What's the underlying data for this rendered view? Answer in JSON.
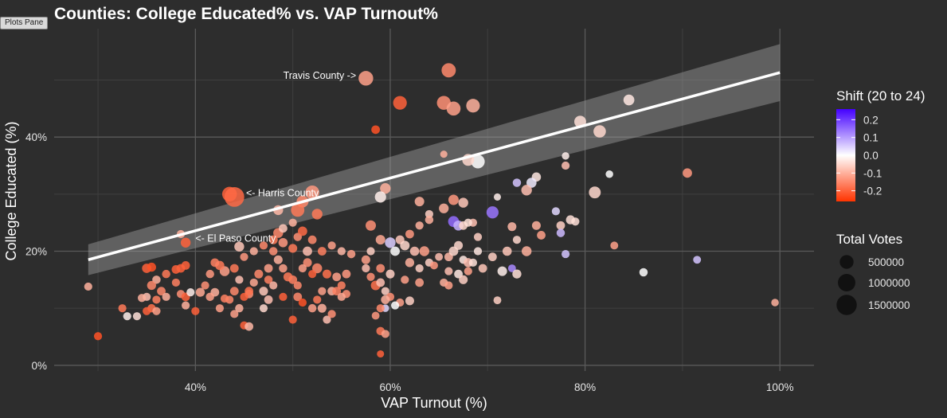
{
  "pane_tab": {
    "label": "Plots Pane"
  },
  "colors": {
    "background": "#2d2d2d",
    "grid_major": "#5a5a5a",
    "grid_minor": "#3f3f3f",
    "text": "#ffffff",
    "axis_text": "#e6e6e6",
    "trend_line": "#ffffff",
    "confidence_band": "#a0a0a0",
    "scale_high": "#4400ff",
    "scale_mid": "#ffffff",
    "scale_low": "#ff3300"
  },
  "chart_data": {
    "type": "scatter",
    "title": "Counties: College Educated% vs. VAP Turnout%",
    "xlabel": "VAP Turnout (%)",
    "ylabel": "College Educated (%)",
    "xlim": [
      0.255,
      1.035
    ],
    "ylim": [
      -0.01,
      0.59
    ],
    "x_ticks": [
      {
        "value": 0.4,
        "label": "40%"
      },
      {
        "value": 0.6,
        "label": "60%"
      },
      {
        "value": 0.8,
        "label": "80%"
      },
      {
        "value": 1.0,
        "label": "100%"
      }
    ],
    "y_ticks": [
      {
        "value": 0.0,
        "label": "0%"
      },
      {
        "value": 0.2,
        "label": "20%"
      },
      {
        "value": 0.4,
        "label": "40%"
      }
    ],
    "grid": true,
    "trend": {
      "x": [
        0.29,
        1.0
      ],
      "y": [
        0.185,
        0.513
      ],
      "band_halfwidth": [
        0.027,
        0.05
      ]
    },
    "color_legend": {
      "title": "Shift (20 to 24)",
      "min": -0.26,
      "max": 0.26,
      "ticks": [
        {
          "value": 0.2,
          "label": "0.2"
        },
        {
          "value": 0.1,
          "label": "0.1"
        },
        {
          "value": 0.0,
          "label": "0.0"
        },
        {
          "value": -0.1,
          "label": "-0.1"
        },
        {
          "value": -0.2,
          "label": "-0.2"
        }
      ]
    },
    "size_legend": {
      "title": "Total Votes",
      "entries": [
        {
          "value": 500000,
          "label": "500000"
        },
        {
          "value": 1000000,
          "label": "1000000"
        },
        {
          "value": 1500000,
          "label": "1500000"
        }
      ]
    },
    "annotations": [
      {
        "text": "Travis County ->",
        "x": 0.565,
        "y": 0.508,
        "anchor": "end"
      },
      {
        "text": "<- Harris County",
        "x": 0.452,
        "y": 0.302,
        "anchor": "start"
      },
      {
        "text": "<- El Paso County",
        "x": 0.4,
        "y": 0.222,
        "anchor": "start"
      }
    ],
    "points": [
      [
        0.575,
        0.503,
        -0.12,
        600000
      ],
      [
        0.66,
        0.517,
        -0.15,
        550000
      ],
      [
        0.61,
        0.46,
        -0.2,
        480000
      ],
      [
        0.655,
        0.46,
        -0.14,
        500000
      ],
      [
        0.665,
        0.45,
        -0.12,
        520000
      ],
      [
        0.685,
        0.455,
        -0.1,
        480000
      ],
      [
        0.585,
        0.413,
        -0.22,
        80000
      ],
      [
        0.845,
        0.465,
        -0.03,
        220000
      ],
      [
        0.795,
        0.427,
        -0.04,
        300000
      ],
      [
        0.815,
        0.41,
        -0.05,
        350000
      ],
      [
        0.69,
        0.357,
        0.0,
        480000
      ],
      [
        0.68,
        0.36,
        -0.05,
        300000
      ],
      [
        0.78,
        0.367,
        -0.02,
        40000
      ],
      [
        0.78,
        0.35,
        -0.08,
        60000
      ],
      [
        0.655,
        0.37,
        -0.1,
        30000
      ],
      [
        0.905,
        0.337,
        -0.13,
        120000
      ],
      [
        0.825,
        0.335,
        0.0,
        40000
      ],
      [
        0.435,
        0.3,
        -0.2,
        600000
      ],
      [
        0.44,
        0.295,
        -0.19,
        1400000
      ],
      [
        0.52,
        0.303,
        -0.13,
        500000
      ],
      [
        0.51,
        0.287,
        -0.15,
        300000
      ],
      [
        0.505,
        0.272,
        -0.17,
        450000
      ],
      [
        0.485,
        0.272,
        -0.09,
        150000
      ],
      [
        0.525,
        0.265,
        -0.17,
        200000
      ],
      [
        0.595,
        0.31,
        -0.1,
        200000
      ],
      [
        0.59,
        0.295,
        -0.02,
        250000
      ],
      [
        0.63,
        0.287,
        -0.1,
        130000
      ],
      [
        0.665,
        0.29,
        -0.13,
        180000
      ],
      [
        0.675,
        0.285,
        -0.07,
        150000
      ],
      [
        0.75,
        0.33,
        -0.03,
        110000
      ],
      [
        0.745,
        0.32,
        0.02,
        160000
      ],
      [
        0.73,
        0.32,
        0.06,
        70000
      ],
      [
        0.74,
        0.307,
        -0.08,
        200000
      ],
      [
        0.81,
        0.303,
        -0.05,
        300000
      ],
      [
        0.71,
        0.295,
        -0.02,
        30000
      ],
      [
        0.705,
        0.268,
        0.14,
        320000
      ],
      [
        0.665,
        0.252,
        0.15,
        220000
      ],
      [
        0.67,
        0.245,
        0.08,
        160000
      ],
      [
        0.64,
        0.265,
        -0.06,
        60000
      ],
      [
        0.655,
        0.275,
        -0.1,
        140000
      ],
      [
        0.75,
        0.245,
        -0.1,
        90000
      ],
      [
        0.755,
        0.228,
        -0.12,
        80000
      ],
      [
        0.77,
        0.27,
        0.04,
        60000
      ],
      [
        0.775,
        0.245,
        -0.06,
        80000
      ],
      [
        0.785,
        0.255,
        -0.04,
        100000
      ],
      [
        0.79,
        0.252,
        -0.04,
        60000
      ],
      [
        0.775,
        0.232,
        0.07,
        70000
      ],
      [
        0.725,
        0.243,
        -0.09,
        90000
      ],
      [
        0.73,
        0.22,
        -0.05,
        60000
      ],
      [
        0.72,
        0.2,
        -0.07,
        110000
      ],
      [
        0.74,
        0.2,
        -0.1,
        150000
      ],
      [
        0.705,
        0.19,
        -0.06,
        80000
      ],
      [
        0.78,
        0.195,
        0.06,
        60000
      ],
      [
        0.83,
        0.21,
        -0.12,
        50000
      ],
      [
        0.86,
        0.163,
        0.0,
        70000
      ],
      [
        0.915,
        0.185,
        0.06,
        50000
      ],
      [
        0.995,
        0.11,
        -0.1,
        40000
      ],
      [
        0.71,
        0.114,
        -0.06,
        50000
      ],
      [
        0.715,
        0.165,
        -0.02,
        130000
      ],
      [
        0.725,
        0.17,
        0.12,
        50000
      ],
      [
        0.73,
        0.16,
        -0.04,
        100000
      ],
      [
        0.69,
        0.225,
        -0.06,
        60000
      ],
      [
        0.685,
        0.25,
        -0.08,
        60000
      ],
      [
        0.675,
        0.245,
        -0.05,
        80000
      ],
      [
        0.68,
        0.25,
        -0.04,
        60000
      ],
      [
        0.63,
        0.245,
        -0.1,
        60000
      ],
      [
        0.64,
        0.255,
        -0.1,
        70000
      ],
      [
        0.62,
        0.23,
        -0.13,
        80000
      ],
      [
        0.61,
        0.22,
        -0.07,
        90000
      ],
      [
        0.6,
        0.215,
        0.05,
        200000
      ],
      [
        0.59,
        0.22,
        -0.11,
        130000
      ],
      [
        0.58,
        0.245,
        -0.14,
        180000
      ],
      [
        0.605,
        0.2,
        0.0,
        120000
      ],
      [
        0.615,
        0.21,
        -0.05,
        130000
      ],
      [
        0.625,
        0.2,
        -0.08,
        110000
      ],
      [
        0.635,
        0.2,
        -0.12,
        150000
      ],
      [
        0.64,
        0.18,
        -0.06,
        60000
      ],
      [
        0.645,
        0.175,
        -0.13,
        50000
      ],
      [
        0.65,
        0.19,
        -0.08,
        50000
      ],
      [
        0.66,
        0.19,
        -0.09,
        80000
      ],
      [
        0.665,
        0.2,
        -0.05,
        120000
      ],
      [
        0.67,
        0.21,
        -0.05,
        90000
      ],
      [
        0.675,
        0.185,
        -0.03,
        60000
      ],
      [
        0.68,
        0.18,
        -0.08,
        100000
      ],
      [
        0.685,
        0.18,
        -0.04,
        60000
      ],
      [
        0.66,
        0.165,
        -0.08,
        60000
      ],
      [
        0.67,
        0.16,
        -0.03,
        80000
      ],
      [
        0.655,
        0.145,
        -0.1,
        60000
      ],
      [
        0.66,
        0.14,
        -0.12,
        60000
      ],
      [
        0.675,
        0.15,
        -0.06,
        90000
      ],
      [
        0.68,
        0.165,
        -0.12,
        60000
      ],
      [
        0.695,
        0.17,
        -0.07,
        80000
      ],
      [
        0.69,
        0.2,
        -0.03,
        60000
      ],
      [
        0.62,
        0.18,
        -0.1,
        100000
      ],
      [
        0.63,
        0.17,
        -0.06,
        60000
      ],
      [
        0.63,
        0.145,
        -0.12,
        80000
      ],
      [
        0.615,
        0.15,
        -0.12,
        60000
      ],
      [
        0.6,
        0.16,
        -0.06,
        90000
      ],
      [
        0.59,
        0.17,
        -0.14,
        80000
      ],
      [
        0.58,
        0.2,
        -0.06,
        60000
      ],
      [
        0.575,
        0.185,
        -0.12,
        90000
      ],
      [
        0.575,
        0.17,
        -0.08,
        60000
      ],
      [
        0.58,
        0.155,
        -0.14,
        60000
      ],
      [
        0.585,
        0.14,
        -0.18,
        130000
      ],
      [
        0.59,
        0.145,
        -0.08,
        80000
      ],
      [
        0.595,
        0.13,
        -0.06,
        60000
      ],
      [
        0.6,
        0.12,
        -0.14,
        60000
      ],
      [
        0.595,
        0.115,
        -0.1,
        90000
      ],
      [
        0.61,
        0.11,
        -0.12,
        60000
      ],
      [
        0.62,
        0.113,
        -0.06,
        90000
      ],
      [
        0.605,
        0.105,
        0.0,
        60000
      ],
      [
        0.595,
        0.1,
        0.04,
        40000
      ],
      [
        0.59,
        0.1,
        -0.15,
        60000
      ],
      [
        0.585,
        0.087,
        -0.13,
        50000
      ],
      [
        0.59,
        0.06,
        -0.17,
        70000
      ],
      [
        0.595,
        0.055,
        -0.12,
        60000
      ],
      [
        0.59,
        0.02,
        -0.2,
        30000
      ],
      [
        0.555,
        0.16,
        -0.13,
        80000
      ],
      [
        0.56,
        0.195,
        -0.12,
        70000
      ],
      [
        0.55,
        0.2,
        -0.09,
        60000
      ],
      [
        0.54,
        0.21,
        -0.12,
        60000
      ],
      [
        0.53,
        0.2,
        -0.16,
        80000
      ],
      [
        0.525,
        0.17,
        -0.15,
        150000
      ],
      [
        0.535,
        0.16,
        -0.18,
        90000
      ],
      [
        0.545,
        0.155,
        -0.12,
        80000
      ],
      [
        0.55,
        0.14,
        -0.16,
        60000
      ],
      [
        0.555,
        0.125,
        -0.14,
        60000
      ],
      [
        0.54,
        0.13,
        -0.1,
        80000
      ],
      [
        0.53,
        0.13,
        -0.12,
        60000
      ],
      [
        0.52,
        0.16,
        -0.2,
        60000
      ],
      [
        0.515,
        0.18,
        -0.14,
        90000
      ],
      [
        0.51,
        0.17,
        -0.12,
        60000
      ],
      [
        0.505,
        0.14,
        -0.15,
        60000
      ],
      [
        0.5,
        0.15,
        -0.16,
        80000
      ],
      [
        0.495,
        0.155,
        -0.17,
        100000
      ],
      [
        0.49,
        0.17,
        -0.12,
        70000
      ],
      [
        0.485,
        0.185,
        -0.1,
        90000
      ],
      [
        0.48,
        0.2,
        -0.14,
        70000
      ],
      [
        0.475,
        0.17,
        -0.12,
        80000
      ],
      [
        0.47,
        0.21,
        -0.15,
        60000
      ],
      [
        0.48,
        0.22,
        -0.17,
        90000
      ],
      [
        0.485,
        0.232,
        -0.15,
        150000
      ],
      [
        0.49,
        0.215,
        -0.13,
        110000
      ],
      [
        0.5,
        0.205,
        -0.17,
        90000
      ],
      [
        0.505,
        0.225,
        -0.14,
        70000
      ],
      [
        0.51,
        0.235,
        -0.19,
        120000
      ],
      [
        0.49,
        0.24,
        -0.07,
        80000
      ],
      [
        0.5,
        0.25,
        -0.1,
        60000
      ],
      [
        0.515,
        0.2,
        -0.08,
        120000
      ],
      [
        0.52,
        0.22,
        -0.15,
        80000
      ],
      [
        0.47,
        0.13,
        -0.07,
        90000
      ],
      [
        0.475,
        0.15,
        -0.16,
        70000
      ],
      [
        0.48,
        0.14,
        -0.09,
        60000
      ],
      [
        0.47,
        0.1,
        -0.05,
        60000
      ],
      [
        0.475,
        0.115,
        -0.08,
        80000
      ],
      [
        0.49,
        0.12,
        -0.2,
        60000
      ],
      [
        0.5,
        0.08,
        -0.2,
        60000
      ],
      [
        0.505,
        0.12,
        -0.15,
        80000
      ],
      [
        0.51,
        0.11,
        -0.22,
        60000
      ],
      [
        0.52,
        0.1,
        -0.12,
        70000
      ],
      [
        0.525,
        0.115,
        -0.17,
        60000
      ],
      [
        0.53,
        0.1,
        -0.1,
        90000
      ],
      [
        0.535,
        0.08,
        -0.08,
        60000
      ],
      [
        0.54,
        0.09,
        -0.14,
        60000
      ],
      [
        0.545,
        0.13,
        -0.16,
        80000
      ],
      [
        0.55,
        0.12,
        -0.11,
        60000
      ],
      [
        0.465,
        0.16,
        -0.15,
        90000
      ],
      [
        0.46,
        0.145,
        -0.11,
        60000
      ],
      [
        0.455,
        0.125,
        -0.14,
        80000
      ],
      [
        0.45,
        0.12,
        -0.2,
        60000
      ],
      [
        0.455,
        0.13,
        -0.18,
        80000
      ],
      [
        0.445,
        0.15,
        -0.08,
        60000
      ],
      [
        0.44,
        0.13,
        -0.15,
        80000
      ],
      [
        0.435,
        0.115,
        -0.15,
        60000
      ],
      [
        0.44,
        0.09,
        -0.12,
        60000
      ],
      [
        0.445,
        0.1,
        -0.1,
        70000
      ],
      [
        0.45,
        0.07,
        -0.2,
        60000
      ],
      [
        0.455,
        0.068,
        -0.09,
        80000
      ],
      [
        0.46,
        0.2,
        -0.1,
        60000
      ],
      [
        0.445,
        0.208,
        -0.07,
        150000
      ],
      [
        0.45,
        0.19,
        -0.13,
        60000
      ],
      [
        0.44,
        0.17,
        -0.17,
        80000
      ],
      [
        0.43,
        0.165,
        -0.12,
        150000
      ],
      [
        0.425,
        0.175,
        -0.17,
        110000
      ],
      [
        0.42,
        0.18,
        -0.16,
        80000
      ],
      [
        0.415,
        0.16,
        -0.13,
        70000
      ],
      [
        0.41,
        0.14,
        -0.14,
        60000
      ],
      [
        0.42,
        0.128,
        -0.1,
        80000
      ],
      [
        0.415,
        0.12,
        -0.12,
        70000
      ],
      [
        0.405,
        0.128,
        -0.11,
        100000
      ],
      [
        0.43,
        0.117,
        -0.16,
        60000
      ],
      [
        0.425,
        0.1,
        -0.12,
        60000
      ],
      [
        0.4,
        0.095,
        -0.2,
        60000
      ],
      [
        0.39,
        0.105,
        -0.1,
        60000
      ],
      [
        0.385,
        0.125,
        -0.14,
        60000
      ],
      [
        0.39,
        0.12,
        -0.2,
        80000
      ],
      [
        0.395,
        0.128,
        -0.02,
        60000
      ],
      [
        0.38,
        0.145,
        -0.16,
        60000
      ],
      [
        0.37,
        0.16,
        -0.17,
        70000
      ],
      [
        0.36,
        0.15,
        -0.1,
        70000
      ],
      [
        0.355,
        0.14,
        -0.15,
        100000
      ],
      [
        0.35,
        0.17,
        -0.2,
        120000
      ],
      [
        0.355,
        0.172,
        -0.22,
        100000
      ],
      [
        0.365,
        0.13,
        -0.15,
        80000
      ],
      [
        0.37,
        0.12,
        -0.1,
        60000
      ],
      [
        0.36,
        0.115,
        -0.16,
        60000
      ],
      [
        0.35,
        0.12,
        -0.08,
        60000
      ],
      [
        0.345,
        0.118,
        -0.1,
        60000
      ],
      [
        0.355,
        0.1,
        -0.18,
        70000
      ],
      [
        0.35,
        0.095,
        -0.2,
        60000
      ],
      [
        0.36,
        0.095,
        -0.12,
        60000
      ],
      [
        0.34,
        0.086,
        -0.04,
        60000
      ],
      [
        0.33,
        0.086,
        -0.02,
        60000
      ],
      [
        0.325,
        0.1,
        -0.17,
        60000
      ],
      [
        0.29,
        0.138,
        -0.1,
        60000
      ],
      [
        0.3,
        0.051,
        -0.22,
        60000
      ],
      [
        0.385,
        0.23,
        -0.1,
        60000
      ],
      [
        0.39,
        0.215,
        -0.2,
        150000
      ],
      [
        0.385,
        0.17,
        -0.2,
        80000
      ],
      [
        0.39,
        0.175,
        -0.2,
        80000
      ],
      [
        0.38,
        0.168,
        -0.2,
        80000
      ]
    ]
  }
}
